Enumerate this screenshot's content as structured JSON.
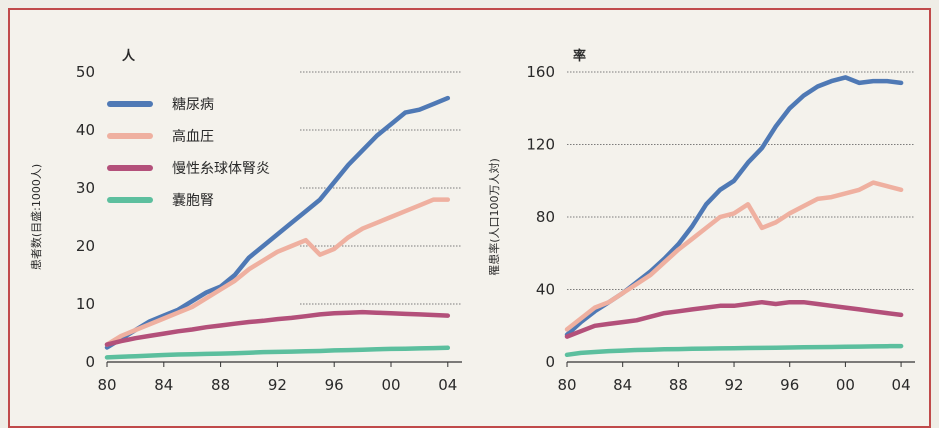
{
  "colors": {
    "frame": "#c04a4a",
    "diabetes": "#4f79b5",
    "hypertension": "#efb0a0",
    "ckd": "#b3507a",
    "cystic": "#5cbf9e"
  },
  "chart_data": [
    {
      "type": "line",
      "unit_label": "人",
      "ylabel": "患者数(目盛:1000人)",
      "ylim": [
        0,
        50
      ],
      "yticks": [
        "0",
        "10",
        "20",
        "30",
        "40",
        "50"
      ],
      "xlim": [
        1980,
        2005
      ],
      "xticks": [
        "80",
        "84",
        "88",
        "92",
        "96",
        "00",
        "04"
      ],
      "legend": {
        "placement": "top-left"
      },
      "x": [
        1980,
        1981,
        1982,
        1983,
        1984,
        1985,
        1986,
        1987,
        1988,
        1989,
        1990,
        1991,
        1992,
        1993,
        1994,
        1995,
        1996,
        1997,
        1998,
        1999,
        2000,
        2001,
        2002,
        2003,
        2004
      ],
      "series": [
        {
          "name": "糖尿病",
          "color_key": "diabetes",
          "values": [
            2.5,
            4,
            5.5,
            7,
            8,
            9,
            10.5,
            12,
            13,
            15,
            18,
            20,
            22,
            24,
            26,
            28,
            31,
            34,
            36.5,
            39,
            41,
            43,
            43.5,
            44.5,
            45.5
          ]
        },
        {
          "name": "高血圧",
          "color_key": "hypertension",
          "values": [
            3,
            4.5,
            5.5,
            6.5,
            7.5,
            8.5,
            9.5,
            11,
            12.5,
            14,
            16,
            17.5,
            19,
            20,
            21,
            18.5,
            19.5,
            21.5,
            23,
            24,
            25,
            26,
            27,
            28,
            28
          ]
        },
        {
          "name": "慢性糸球体腎炎",
          "color_key": "ckd",
          "values": [
            3,
            3.6,
            4.1,
            4.5,
            4.9,
            5.3,
            5.6,
            6.0,
            6.3,
            6.6,
            6.9,
            7.1,
            7.4,
            7.6,
            7.9,
            8.2,
            8.4,
            8.5,
            8.6,
            8.5,
            8.4,
            8.3,
            8.2,
            8.1,
            8.0
          ]
        },
        {
          "name": "嚢胞腎",
          "color_key": "cystic",
          "values": [
            0.8,
            0.9,
            1.0,
            1.1,
            1.2,
            1.3,
            1.35,
            1.4,
            1.45,
            1.5,
            1.6,
            1.7,
            1.75,
            1.8,
            1.85,
            1.9,
            2.0,
            2.05,
            2.1,
            2.2,
            2.25,
            2.3,
            2.35,
            2.4,
            2.45
          ]
        }
      ]
    },
    {
      "type": "line",
      "unit_label": "率",
      "ylabel": "罹患率(人口100万人対)",
      "ylim": [
        0,
        160
      ],
      "yticks": [
        "0",
        "40",
        "80",
        "120",
        "160"
      ],
      "xlim": [
        1980,
        2005
      ],
      "xticks": [
        "80",
        "84",
        "88",
        "92",
        "96",
        "00",
        "04"
      ],
      "x": [
        1980,
        1981,
        1982,
        1983,
        1984,
        1985,
        1986,
        1987,
        1988,
        1989,
        1990,
        1991,
        1992,
        1993,
        1994,
        1995,
        1996,
        1997,
        1998,
        1999,
        2000,
        2001,
        2002,
        2003,
        2004
      ],
      "series": [
        {
          "name": "糖尿病",
          "color_key": "diabetes",
          "values": [
            15,
            22,
            28,
            33,
            38,
            44,
            50,
            57,
            65,
            75,
            87,
            95,
            100,
            110,
            118,
            130,
            140,
            147,
            152,
            155,
            157,
            154,
            155,
            155,
            154
          ]
        },
        {
          "name": "高血圧",
          "color_key": "hypertension",
          "values": [
            18,
            24,
            30,
            33,
            38,
            43,
            48,
            55,
            62,
            68,
            74,
            80,
            82,
            87,
            74,
            77,
            82,
            86,
            90,
            91,
            93,
            95,
            99,
            97,
            95
          ]
        },
        {
          "name": "慢性糸球体腎炎",
          "color_key": "ckd",
          "values": [
            14,
            17,
            20,
            21,
            22,
            23,
            25,
            27,
            28,
            29,
            30,
            31,
            31,
            32,
            33,
            32,
            33,
            33,
            32,
            31,
            30,
            29,
            28,
            27,
            26
          ]
        },
        {
          "name": "嚢胞腎",
          "color_key": "cystic",
          "values": [
            4,
            5,
            5.5,
            6,
            6.3,
            6.6,
            6.8,
            7,
            7.1,
            7.3,
            7.4,
            7.5,
            7.6,
            7.7,
            7.8,
            7.9,
            8,
            8.1,
            8.2,
            8.3,
            8.4,
            8.5,
            8.6,
            8.7,
            8.8
          ]
        }
      ]
    }
  ]
}
